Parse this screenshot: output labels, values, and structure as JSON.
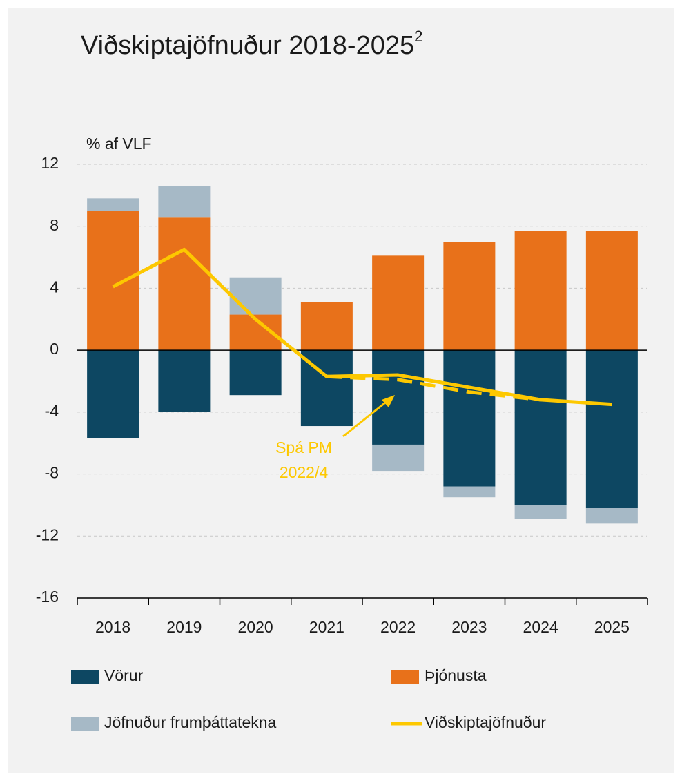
{
  "chart_data": {
    "type": "bar",
    "title": "Viðskiptajöfnuður 2018-2025",
    "title_note": "2",
    "y_label": "% af VLF",
    "categories": [
      "2018",
      "2019",
      "2020",
      "2021",
      "2022",
      "2023",
      "2024",
      "2025"
    ],
    "stacked": true,
    "series": [
      {
        "name": "Vörur",
        "type": "bar",
        "color": "#0d4762",
        "values": [
          -5.7,
          -4.0,
          -2.9,
          -4.9,
          -6.1,
          -8.8,
          -10.0,
          -10.2
        ]
      },
      {
        "name": "Þjónusta",
        "type": "bar",
        "color": "#e8711a",
        "values": [
          9.0,
          8.6,
          2.3,
          3.1,
          6.1,
          7.0,
          7.7,
          7.7
        ]
      },
      {
        "name": "Jöfnuður frumþáttatekna",
        "type": "bar",
        "color": "#a6b9c6",
        "values": [
          0.8,
          2.0,
          2.4,
          0,
          -1.7,
          -0.7,
          -0.9,
          -1.0
        ]
      },
      {
        "name": "Viðskiptajöfnuður",
        "type": "line",
        "color": "#fdc800",
        "values": [
          4.1,
          6.5,
          2.0,
          -1.7,
          -1.6,
          -2.4,
          -3.2,
          -3.5
        ]
      }
    ],
    "forecast": {
      "label": [
        "Spá PM",
        "2022/4"
      ],
      "color": "#fdc800",
      "values": [
        null,
        null,
        null,
        -1.7,
        -1.9,
        -2.7,
        -3.2,
        null
      ]
    },
    "ylim": [
      -16,
      12
    ],
    "yticks": [
      -16,
      -12,
      -8,
      -4,
      0,
      4,
      8,
      12
    ],
    "grid": true
  }
}
